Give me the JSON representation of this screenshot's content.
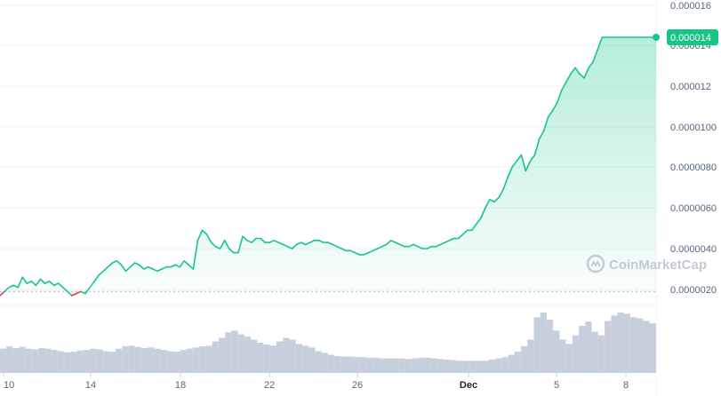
{
  "watermark": {
    "text": "CoinMarketCap"
  },
  "colors": {
    "up": "#16c784",
    "down": "#ea3943",
    "volume": "#cfd6e4",
    "grid": "#eff2f5",
    "baseline": "#a6b0c3",
    "badge": "#16c784"
  },
  "chart_data": {
    "type": "area",
    "title": "",
    "xlabel": "",
    "ylabel": "",
    "x_ticks": [
      "10",
      "14",
      "18",
      "22",
      "26",
      "Dec",
      "5",
      "8"
    ],
    "y_ticks": [
      "0.0000020",
      "0.0000040",
      "0.0000060",
      "0.0000080",
      "0.0000100",
      "0.000012",
      "0.000014",
      "0.000016"
    ],
    "ylim": [
      1.2e-06,
      1.6e-05
    ],
    "baseline_value": 1.9e-06,
    "current_price_label": "0.000014",
    "current_price": 1.44e-05,
    "x_units": "day index (0 = Nov 10, 21 = Dec 1)",
    "xlim": [
      0,
      29.2
    ],
    "grid": true,
    "legend": "none",
    "series": [
      {
        "values_x": [
          0,
          0.2,
          0.4,
          0.6,
          0.8,
          1.0,
          1.2,
          1.4,
          1.6,
          1.8,
          2.0,
          2.2,
          2.4,
          2.6,
          2.8,
          3.0,
          3.2,
          3.4,
          3.6,
          3.8,
          4.0,
          4.2,
          4.4,
          4.6,
          4.8,
          5.0,
          5.2,
          5.4,
          5.6,
          5.8,
          6.0,
          6.2,
          6.4,
          6.6,
          6.8,
          7.0,
          7.2,
          7.4,
          7.6,
          7.8,
          8.0,
          8.2,
          8.4,
          8.6,
          8.8,
          9.0,
          9.2,
          9.4,
          9.6,
          9.8,
          10.0,
          10.2,
          10.4,
          10.6,
          10.8,
          11.0,
          11.2,
          11.4,
          11.6,
          11.8,
          12.0,
          12.2,
          12.4,
          12.6,
          12.8,
          13.0,
          13.2,
          13.4,
          13.6,
          13.8,
          14.0,
          14.2,
          14.4,
          14.6,
          14.8,
          15.0,
          15.2,
          15.4,
          15.6,
          15.8,
          16.0,
          16.2,
          16.4,
          16.6,
          16.8,
          17.0,
          17.2,
          17.4,
          17.6,
          17.8,
          18.0,
          18.2,
          18.4,
          18.6,
          18.8,
          19.0,
          19.2,
          19.4,
          19.6,
          19.8,
          20.0,
          20.2,
          20.4,
          20.6,
          20.8,
          21.0,
          21.2,
          21.4,
          21.6,
          21.8,
          22.0,
          22.2,
          22.4,
          22.6,
          22.8,
          23.0,
          23.2,
          23.4,
          23.6,
          23.8,
          24.0,
          24.2,
          24.4,
          24.6,
          24.8,
          25.0,
          25.2,
          25.4,
          25.6,
          25.8,
          26.0,
          26.2,
          26.4,
          26.6,
          26.8,
          27.0,
          27.2,
          27.4,
          27.6,
          27.8,
          28.0,
          28.2,
          28.4,
          28.6,
          28.8,
          29.0,
          29.2
        ],
        "values_y": [
          1.7e-06,
          1.9e-06,
          2.1e-06,
          2.2e-06,
          2.1e-06,
          2.6e-06,
          2.3e-06,
          2.4e-06,
          2.2e-06,
          2.5e-06,
          2.3e-06,
          2.4e-06,
          2.2e-06,
          2.3e-06,
          2.1e-06,
          1.9e-06,
          1.7e-06,
          1.8e-06,
          1.9e-06,
          1.8e-06,
          2.1e-06,
          2.4e-06,
          2.7e-06,
          2.9e-06,
          3.1e-06,
          3.3e-06,
          3.4e-06,
          3.2e-06,
          2.9e-06,
          3.1e-06,
          3.3e-06,
          3.2e-06,
          3e-06,
          3.1e-06,
          3e-06,
          2.9e-06,
          3e-06,
          3.1e-06,
          3.1e-06,
          3.2e-06,
          3.1e-06,
          3.4e-06,
          3.2e-06,
          3e-06,
          4.4e-06,
          4.9e-06,
          4.7e-06,
          4.3e-06,
          4.1e-06,
          4e-06,
          4.4e-06,
          4e-06,
          3.8e-06,
          3.8e-06,
          4.6e-06,
          4.4e-06,
          4.3e-06,
          4.5e-06,
          4.5e-06,
          4.3e-06,
          4.3e-06,
          4.4e-06,
          4.3e-06,
          4.2e-06,
          4.1e-06,
          4e-06,
          4.2e-06,
          4.3e-06,
          4.2e-06,
          4.3e-06,
          4.4e-06,
          4.4e-06,
          4.3e-06,
          4.3e-06,
          4.2e-06,
          4.1e-06,
          4e-06,
          3.9e-06,
          3.9e-06,
          3.8e-06,
          3.7e-06,
          3.7e-06,
          3.8e-06,
          3.9e-06,
          4e-06,
          4.1e-06,
          4.2e-06,
          4.4e-06,
          4.3e-06,
          4.2e-06,
          4.1e-06,
          4.1e-06,
          4.2e-06,
          4.1e-06,
          4e-06,
          4e-06,
          4.1e-06,
          4.1e-06,
          4.2e-06,
          4.3e-06,
          4.4e-06,
          4.5e-06,
          4.5e-06,
          4.7e-06,
          4.9e-06,
          4.9e-06,
          5.2e-06,
          5.5e-06,
          6e-06,
          6.4e-06,
          6.3e-06,
          6.5e-06,
          6.9e-06,
          7.5e-06,
          8e-06,
          8.3e-06,
          8.6e-06,
          7.8e-06,
          8.3e-06,
          8.6e-06,
          9.4e-06,
          9.8e-06,
          1.05e-05,
          1.08e-05,
          1.12e-05,
          1.18e-05,
          1.22e-05,
          1.26e-05,
          1.29e-05,
          1.26e-05,
          1.24e-05,
          1.29e-05,
          1.32e-05,
          1.38e-05,
          1.44e-05,
          1.44e-05,
          1.44e-05,
          1.44e-05,
          1.44e-05,
          1.44e-05,
          1.44e-05,
          1.44e-05,
          1.44e-05,
          1.44e-05,
          1.44e-05,
          1.44e-05,
          1.44e-05
        ]
      }
    ],
    "volume": [
      0.4,
      0.44,
      0.41,
      0.43,
      0.4,
      0.39,
      0.41,
      0.4,
      0.38,
      0.36,
      0.34,
      0.35,
      0.37,
      0.38,
      0.4,
      0.39,
      0.36,
      0.35,
      0.4,
      0.44,
      0.45,
      0.43,
      0.41,
      0.42,
      0.4,
      0.38,
      0.36,
      0.35,
      0.38,
      0.4,
      0.42,
      0.44,
      0.45,
      0.52,
      0.58,
      0.67,
      0.7,
      0.64,
      0.6,
      0.55,
      0.5,
      0.47,
      0.45,
      0.52,
      0.58,
      0.55,
      0.48,
      0.45,
      0.42,
      0.36,
      0.33,
      0.3,
      0.28,
      0.27,
      0.27,
      0.26,
      0.26,
      0.25,
      0.25,
      0.24,
      0.24,
      0.24,
      0.24,
      0.23,
      0.24,
      0.25,
      0.25,
      0.24,
      0.23,
      0.22,
      0.21,
      0.2,
      0.2,
      0.2,
      0.2,
      0.2,
      0.22,
      0.24,
      0.26,
      0.3,
      0.35,
      0.44,
      0.55,
      0.92,
      1.0,
      0.88,
      0.7,
      0.55,
      0.48,
      0.62,
      0.78,
      0.85,
      0.68,
      0.62,
      0.86,
      0.95,
      1.0,
      0.98,
      0.92,
      0.9,
      0.86,
      0.82
    ]
  }
}
